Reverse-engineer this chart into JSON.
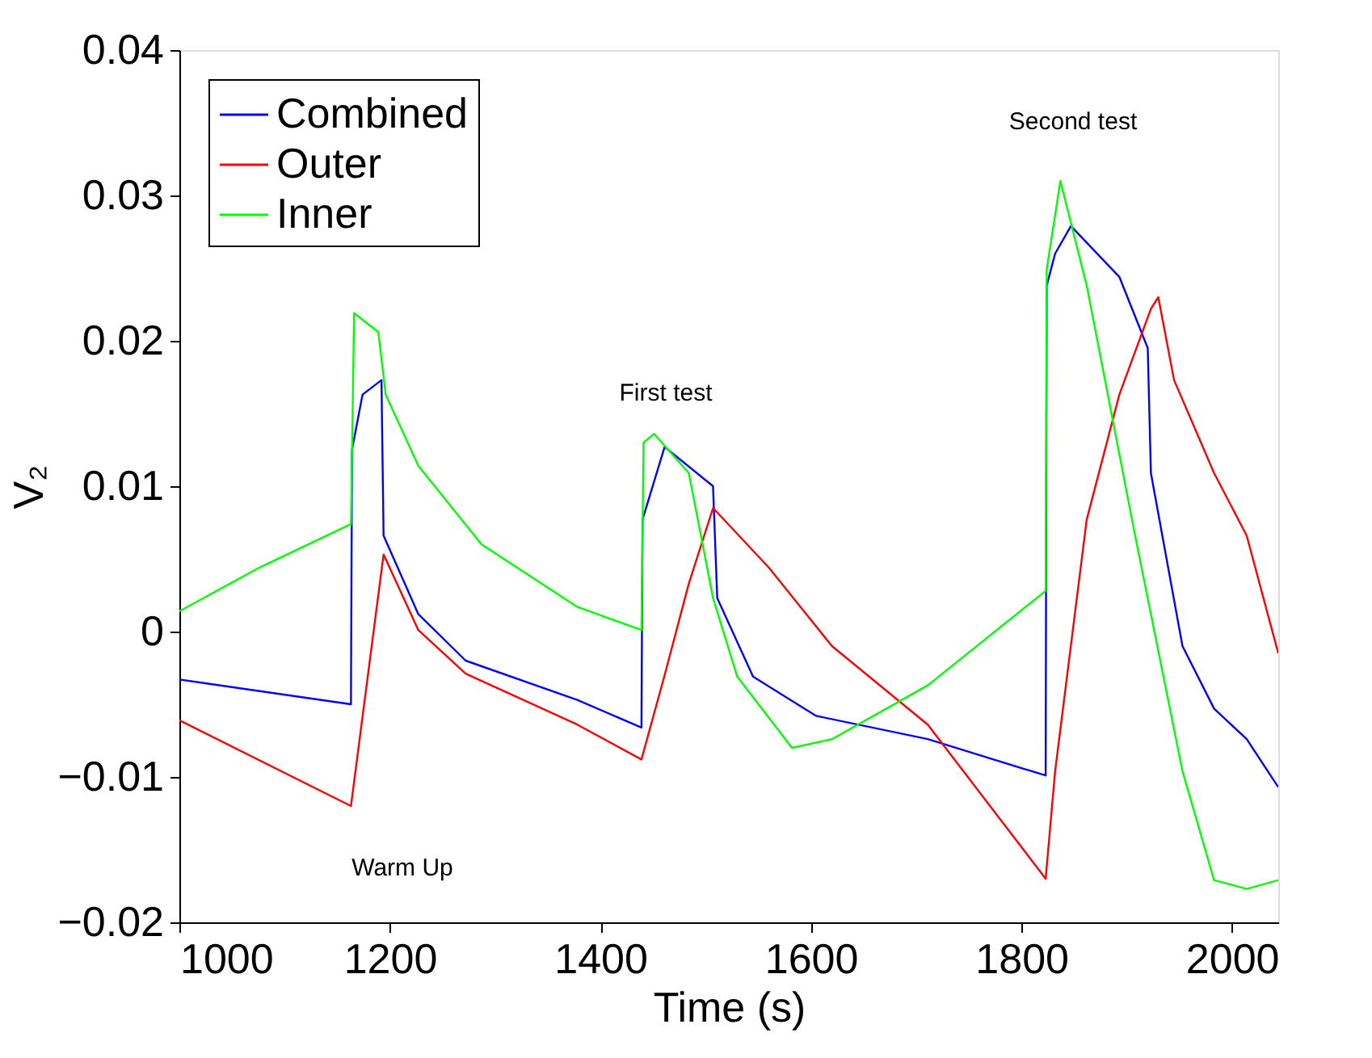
{
  "chart_data": {
    "type": "line",
    "xlabel": "Time (s)",
    "ylabel": "V₂",
    "xlim": [
      1000,
      2044
    ],
    "xticks": [
      1000,
      1200,
      1400,
      1600,
      1800,
      2000
    ],
    "ylim": [
      -0.02,
      0.04
    ],
    "yticks": [
      {
        "value": -0.02,
        "label": "−0.02"
      },
      {
        "value": -0.01,
        "label": "−0.01"
      },
      0,
      0.01,
      0.02,
      0.03,
      0.04
    ],
    "legend": "top left",
    "grid": false,
    "marker": "none",
    "line_style": "solid",
    "series": [
      {
        "name": "Combined",
        "color": "#0000ff",
        "x": [
          1000,
          1163,
          1164,
          1174,
          1192,
          1194,
          1227,
          1272,
          1378,
          1439,
          1440,
          1461,
          1507,
          1511,
          1545,
          1605,
          1711,
          1823,
          1824,
          1832,
          1847,
          1893,
          1920,
          1923,
          1953,
          1983,
          2014,
          2044
        ],
        "values": [
          -0.0033,
          -0.005,
          0.0125,
          0.0163,
          0.0173,
          0.0066,
          0.0012,
          -0.002,
          -0.0047,
          -0.0066,
          0.0077,
          0.0127,
          0.01,
          0.0023,
          -0.0031,
          -0.0058,
          -0.0074,
          -0.0099,
          0.0238,
          0.026,
          0.0279,
          0.0244,
          0.0195,
          0.0109,
          -0.001,
          -0.0053,
          -0.0074,
          -0.0107
        ]
      },
      {
        "name": "Outer",
        "color": "#ff0000",
        "x": [
          1000,
          1163,
          1194,
          1227,
          1272,
          1378,
          1439,
          1461,
          1484,
          1507,
          1560,
          1620,
          1711,
          1823,
          1832,
          1862,
          1893,
          1923,
          1930,
          1945,
          1983,
          2014,
          2044
        ],
        "values": [
          -0.0061,
          -0.012,
          0.0053,
          0.0001,
          -0.0029,
          -0.0064,
          -0.0088,
          -0.003,
          0.0033,
          0.0085,
          0.0044,
          -0.001,
          -0.0064,
          -0.017,
          -0.0096,
          0.0077,
          0.0163,
          0.0222,
          0.023,
          0.0173,
          0.0109,
          0.0066,
          -0.0015
        ]
      },
      {
        "name": "Inner",
        "color": "#00ff00",
        "x": [
          1000,
          1076,
          1163,
          1166,
          1189,
          1196,
          1227,
          1287,
          1378,
          1439,
          1441,
          1451,
          1484,
          1507,
          1530,
          1582,
          1620,
          1711,
          1823,
          1824,
          1837,
          1862,
          1908,
          1953,
          1983,
          2014,
          2044
        ],
        "values": [
          0.0014,
          0.0044,
          0.0074,
          0.0219,
          0.0206,
          0.0163,
          0.0114,
          0.006,
          0.0017,
          0.0001,
          0.013,
          0.0136,
          0.0109,
          0.0023,
          -0.0031,
          -0.008,
          -0.0074,
          -0.0037,
          0.0028,
          0.0249,
          0.031,
          0.0238,
          0.0066,
          -0.0096,
          -0.0171,
          -0.0177,
          -0.0171
        ]
      }
    ],
    "annotations": [
      "Warm Up",
      "First test",
      "Second test"
    ]
  }
}
